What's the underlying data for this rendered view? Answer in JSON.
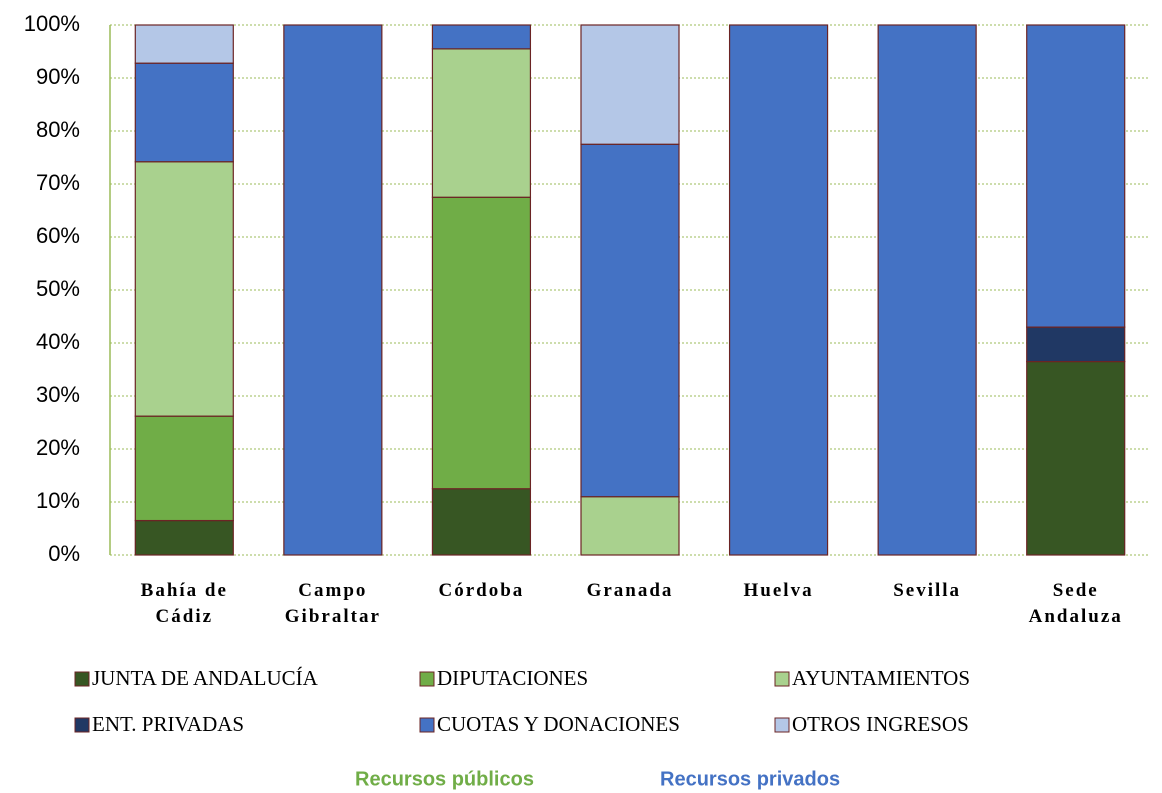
{
  "chart_data": {
    "type": "stacked_bar",
    "categories": [
      "Bahía de Cádiz",
      "Campo Gibraltar",
      "Córdoba",
      "Granada",
      "Huelva",
      "Sevilla",
      "Sede Andaluza"
    ],
    "series": [
      {
        "name": "JUNTA DE ANDALUCÍA",
        "color": "#375623",
        "values": [
          6.5,
          0,
          12.5,
          0,
          0,
          0,
          36.5
        ]
      },
      {
        "name": "DIPUTACIONES",
        "color": "#70ad47",
        "values": [
          19.7,
          0,
          55,
          0,
          0,
          0,
          0
        ]
      },
      {
        "name": "AYUNTAMIENTOS",
        "color": "#a9d18e",
        "values": [
          48,
          0,
          28,
          11,
          0,
          0,
          0
        ]
      },
      {
        "name": "ENT. PRIVADAS",
        "color": "#203864",
        "values": [
          0,
          0,
          0,
          0,
          0,
          0,
          6.5
        ]
      },
      {
        "name": "CUOTAS Y DONACIONES",
        "color": "#4472c4",
        "values": [
          18.6,
          100,
          4.5,
          66.5,
          100,
          100,
          57
        ]
      },
      {
        "name": "OTROS INGRESOS",
        "color": "#b4c7e7",
        "values": [
          7.2,
          0,
          0,
          22.5,
          0,
          0,
          0
        ]
      }
    ],
    "ylim": [
      0,
      100
    ],
    "yticks": [
      {
        "value": 0,
        "label": "0%"
      },
      {
        "value": 10,
        "label": "10%"
      },
      {
        "value": 20,
        "label": "20%"
      },
      {
        "value": 30,
        "label": "30%"
      },
      {
        "value": 40,
        "label": "40%"
      },
      {
        "value": 50,
        "label": "50%"
      },
      {
        "value": 60,
        "label": "60%"
      },
      {
        "value": 70,
        "label": "70%"
      },
      {
        "value": 80,
        "label": "80%"
      },
      {
        "value": 90,
        "label": "90%"
      },
      {
        "value": 100,
        "label": "100%"
      }
    ],
    "grid": true,
    "group_labels": [
      {
        "text": "Recursos públicos",
        "color": "#70ad47"
      },
      {
        "text": "Recursos privados",
        "color": "#4472c4"
      }
    ]
  }
}
